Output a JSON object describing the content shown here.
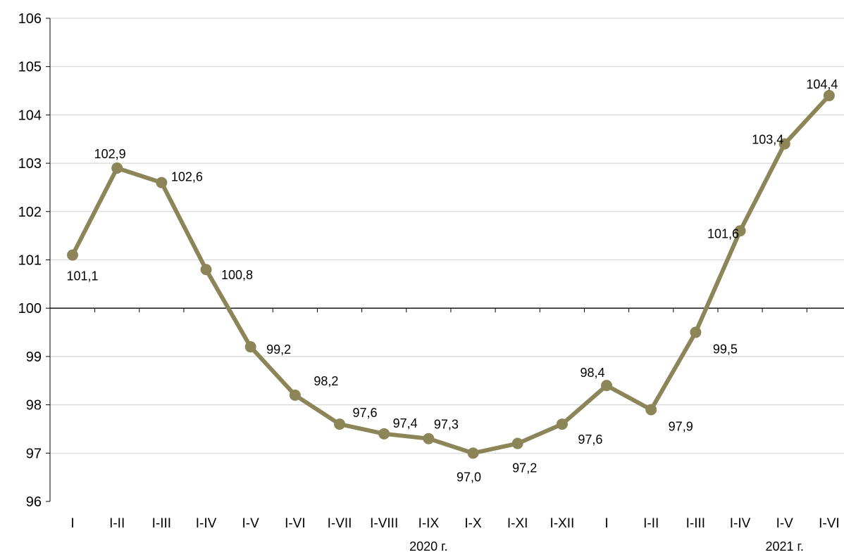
{
  "chart_data": {
    "type": "line",
    "categories": [
      "I",
      "I-II",
      "I-III",
      "I-IV",
      "I-V",
      "I-VI",
      "I-VII",
      "I-VIII",
      "I-IX",
      "I-X",
      "I-XI",
      "I-XII",
      "I",
      "I-II",
      "I-III",
      "I-IV",
      "I-V",
      "I-VI"
    ],
    "series": [
      {
        "values": [
          101.1,
          102.9,
          102.6,
          100.8,
          99.2,
          98.2,
          97.6,
          97.4,
          97.3,
          97.0,
          97.2,
          97.6,
          98.4,
          97.9,
          99.5,
          101.6,
          103.4,
          104.4
        ],
        "data_labels": [
          "101,1",
          "102,9",
          "102,6",
          "100,8",
          "99,2",
          "98,2",
          "97,6",
          "97,4",
          "97,3",
          "97,0",
          "97,2",
          "97,6",
          "98,4",
          "97,9",
          "99,5",
          "101,6",
          "103,4",
          "104,4"
        ],
        "color": "#8c8558"
      }
    ],
    "year_labels": [
      {
        "text": "2020 г.",
        "category_index": 8
      },
      {
        "text": "2021 г.",
        "category_index": 16
      }
    ],
    "ylim": [
      96,
      106
    ],
    "yticks": [
      "96",
      "97",
      "98",
      "99",
      "100",
      "101",
      "102",
      "103",
      "104",
      "105",
      "106"
    ],
    "reference_line": 100,
    "grid": true,
    "grid_color": "#d9d9d9",
    "axis_color": "#000000",
    "legend": "none"
  }
}
